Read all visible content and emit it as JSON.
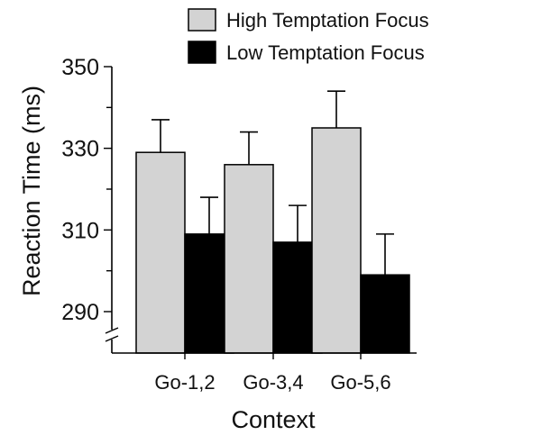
{
  "chart_data": {
    "type": "bar",
    "title": "",
    "xlabel": "Context",
    "ylabel": "Reaction Time (ms)",
    "categories": [
      "Go-1,2",
      "Go-3,4",
      "Go-5,6"
    ],
    "ylim": [
      280,
      350
    ],
    "yticks": [
      290,
      310,
      330,
      350
    ],
    "axis_break": true,
    "grid": false,
    "legend_position": "top",
    "series": [
      {
        "name": "High Temptation Focus",
        "color": "#d3d3d3",
        "values": [
          329,
          326,
          335
        ],
        "errors": [
          8,
          8,
          9
        ]
      },
      {
        "name": "Low Temptation Focus",
        "color": "#000000",
        "values": [
          309,
          307,
          299
        ],
        "errors": [
          9,
          9,
          10
        ]
      }
    ]
  }
}
